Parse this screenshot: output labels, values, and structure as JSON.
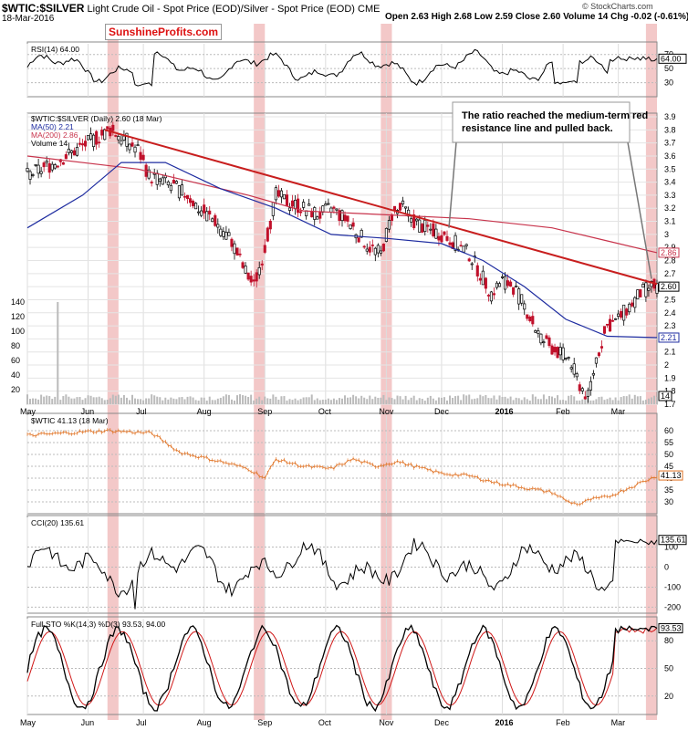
{
  "header": {
    "symbol": "$WTIC:$SILVER",
    "description": "Light Crude Oil - Spot Price (EOD)/Silver - Spot Price (EOD)",
    "exchange": "CME",
    "date": "18-Mar-2016",
    "ohlc": "Open 2.63  High 2.68  Low 2.59  Close 2.60  Volume 14  Chg -0.02 (-0.61%)",
    "credit": "© StockCharts.com",
    "brand": "SunshineProfits.com"
  },
  "annotation": "The ratio reached the medium-term red resistance line and pulled back.",
  "x_labels": [
    "May",
    "Jun",
    "Jul",
    "Aug",
    "Sep",
    "Oct",
    "Nov",
    "Dec",
    "2016",
    "Feb",
    "Mar"
  ],
  "chart_data": [
    {
      "type": "line",
      "panel": "rsi",
      "legend": "RSI(14) 64.00",
      "yticks": [
        30,
        50,
        70
      ],
      "last_value_label": "64.00",
      "ylim": [
        10,
        80
      ],
      "colors": {
        "line": "#000000",
        "fill": "#7a4a4a"
      }
    },
    {
      "type": "candlestick",
      "panel": "main",
      "legend": [
        "$WTIC:$SILVER (Daily) 2.60 (18 Mar)",
        "MA(50) 2.21",
        "MA(200) 2.86",
        "Volume 14"
      ],
      "yticks": [
        1.7,
        1.8,
        1.9,
        2.0,
        2.1,
        2.2,
        2.3,
        2.4,
        2.5,
        2.6,
        2.7,
        2.8,
        2.9,
        3.0,
        3.1,
        3.2,
        3.3,
        3.4,
        3.5,
        3.6,
        3.7,
        3.8,
        3.9
      ],
      "ylim": [
        1.7,
        3.9
      ],
      "volume_ticks": [
        20,
        40,
        60,
        80,
        100,
        120,
        140
      ],
      "price_path": [
        [
          0,
          3.45
        ],
        [
          5,
          3.5
        ],
        [
          10,
          3.55
        ],
        [
          18,
          3.65
        ],
        [
          26,
          3.75
        ],
        [
          30,
          3.8
        ],
        [
          34,
          3.75
        ],
        [
          40,
          3.65
        ],
        [
          44,
          3.45
        ],
        [
          50,
          3.4
        ],
        [
          58,
          3.3
        ],
        [
          62,
          3.2
        ],
        [
          68,
          3.1
        ],
        [
          74,
          2.95
        ],
        [
          78,
          2.75
        ],
        [
          82,
          2.6
        ],
        [
          86,
          2.9
        ],
        [
          90,
          3.3
        ],
        [
          94,
          3.25
        ],
        [
          100,
          3.2
        ],
        [
          106,
          3.15
        ],
        [
          110,
          3.2
        ],
        [
          116,
          3.1
        ],
        [
          120,
          3.0
        ],
        [
          124,
          2.9
        ],
        [
          128,
          2.85
        ],
        [
          132,
          3.15
        ],
        [
          136,
          3.2
        ],
        [
          140,
          3.1
        ],
        [
          144,
          3.05
        ],
        [
          150,
          3.0
        ],
        [
          154,
          2.95
        ],
        [
          160,
          2.85
        ],
        [
          164,
          2.7
        ],
        [
          168,
          2.55
        ],
        [
          172,
          2.65
        ],
        [
          176,
          2.6
        ],
        [
          180,
          2.45
        ],
        [
          186,
          2.2
        ],
        [
          192,
          2.1
        ],
        [
          196,
          2.05
        ],
        [
          200,
          1.85
        ],
        [
          203,
          1.75
        ],
        [
          206,
          2.05
        ],
        [
          210,
          2.3
        ],
        [
          214,
          2.35
        ],
        [
          218,
          2.45
        ],
        [
          222,
          2.55
        ],
        [
          226,
          2.6
        ],
        [
          228,
          2.6
        ]
      ],
      "ma50_path": [
        [
          0,
          3.05
        ],
        [
          20,
          3.3
        ],
        [
          34,
          3.55
        ],
        [
          50,
          3.55
        ],
        [
          70,
          3.35
        ],
        [
          90,
          3.2
        ],
        [
          110,
          3.0
        ],
        [
          130,
          2.97
        ],
        [
          150,
          2.93
        ],
        [
          165,
          2.8
        ],
        [
          180,
          2.6
        ],
        [
          195,
          2.35
        ],
        [
          210,
          2.22
        ],
        [
          228,
          2.21
        ]
      ],
      "ma200_path": [
        [
          0,
          3.6
        ],
        [
          40,
          3.5
        ],
        [
          80,
          3.3
        ],
        [
          100,
          3.18
        ],
        [
          130,
          3.15
        ],
        [
          160,
          3.12
        ],
        [
          190,
          3.05
        ],
        [
          210,
          2.95
        ],
        [
          228,
          2.86
        ]
      ],
      "resistance_line": {
        "from": [
          28,
          3.8
        ],
        "to": [
          228,
          2.62
        ]
      },
      "last_value_labels": [
        "2.86",
        "2.60",
        "2.21"
      ],
      "last_volume_label": "14",
      "colors": {
        "up": "#000000",
        "down": "#c0102a",
        "ma50": "#1e2ca0",
        "ma200": "#c8344c",
        "resistance": "#c81e1e"
      }
    },
    {
      "type": "line",
      "panel": "wtic",
      "legend": "$WTIC 41.13 (18 Mar)",
      "yticks": [
        30,
        35,
        40,
        45,
        50,
        55,
        60
      ],
      "last_value_label": "41.13",
      "ylim": [
        25,
        65
      ],
      "path": [
        [
          0,
          58
        ],
        [
          20,
          59.5
        ],
        [
          30,
          60
        ],
        [
          45,
          59
        ],
        [
          55,
          51
        ],
        [
          70,
          47
        ],
        [
          80,
          44
        ],
        [
          86,
          40
        ],
        [
          90,
          48
        ],
        [
          100,
          45
        ],
        [
          110,
          44
        ],
        [
          118,
          48
        ],
        [
          126,
          45
        ],
        [
          134,
          47
        ],
        [
          140,
          45
        ],
        [
          150,
          42
        ],
        [
          160,
          41
        ],
        [
          170,
          38
        ],
        [
          180,
          36
        ],
        [
          190,
          34
        ],
        [
          196,
          30
        ],
        [
          200,
          29
        ],
        [
          204,
          31
        ],
        [
          210,
          32
        ],
        [
          216,
          35
        ],
        [
          222,
          38
        ],
        [
          228,
          41
        ]
      ],
      "colors": {
        "line": "#e07020"
      }
    },
    {
      "type": "line",
      "panel": "cci",
      "legend": "CCI(20) 135.61",
      "yticks": [
        -200,
        -100,
        0,
        100
      ],
      "last_value_label": "135.61",
      "ylim": [
        -230,
        230
      ],
      "colors": {
        "line": "#000000",
        "fill": "#7a4a4a"
      }
    },
    {
      "type": "line",
      "panel": "sto",
      "legend": "Full STO %K(14,3) %D(3) 93.53, 94.00",
      "yticks": [
        20,
        50,
        80
      ],
      "last_value_label": "93.53",
      "ylim": [
        0,
        100
      ],
      "colors": {
        "k": "#000000",
        "d": "#d01818"
      }
    }
  ]
}
